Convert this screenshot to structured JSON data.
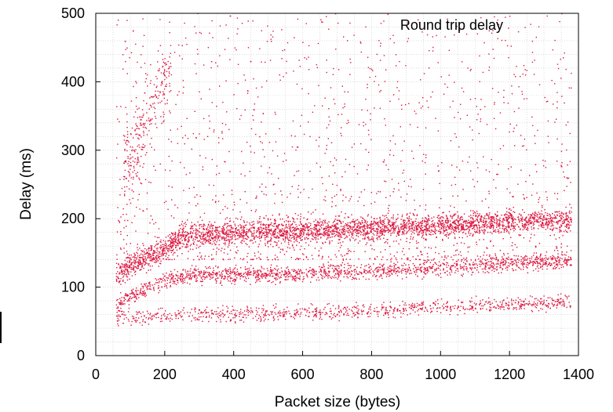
{
  "chart_data": {
    "type": "scatter",
    "title": "",
    "xlabel": "Packet size (bytes)",
    "ylabel": "Delay (ms)",
    "xlim": [
      0,
      1400
    ],
    "ylim": [
      0,
      500
    ],
    "xticks": [
      0,
      200,
      400,
      600,
      800,
      1000,
      1200,
      1400
    ],
    "xtick_labels": [
      "0",
      "200",
      "400",
      "600",
      "800",
      "1000",
      "1200",
      "1400"
    ],
    "yticks": [
      0,
      100,
      200,
      300,
      400,
      500
    ],
    "ytick_labels": [
      "0",
      "100",
      "200",
      "300",
      "400",
      "500"
    ],
    "grid": true,
    "legend_position": "top-right",
    "series": [
      {
        "name": "Round trip delay",
        "color": "#dc143c",
        "x_range": [
          60,
          1380
        ],
        "bands": [
          {
            "label_position": "lowest",
            "points": [
              [
                60,
                55
              ],
              [
                200,
                58
              ],
              [
                400,
                60
              ],
              [
                600,
                62
              ],
              [
                800,
                65
              ],
              [
                1000,
                72
              ],
              [
                1200,
                76
              ],
              [
                1380,
                78
              ]
            ],
            "spread": 9
          },
          {
            "label_position": "middle",
            "points": [
              [
                60,
                75
              ],
              [
                120,
                90
              ],
              [
                200,
                110
              ],
              [
                300,
                118
              ],
              [
                600,
                120
              ],
              [
                800,
                124
              ],
              [
                1000,
                128
              ],
              [
                1200,
                135
              ],
              [
                1380,
                138
              ]
            ],
            "spread": 10
          },
          {
            "label_position": "upper",
            "points": [
              [
                60,
                120
              ],
              [
                120,
                135
              ],
              [
                200,
                155
              ],
              [
                260,
                175
              ],
              [
                400,
                180
              ],
              [
                600,
                183
              ],
              [
                800,
                186
              ],
              [
                1000,
                190
              ],
              [
                1200,
                195
              ],
              [
                1380,
                198
              ]
            ],
            "spread": 14
          }
        ],
        "scatter_above_bands": {
          "y_range": [
            140,
            500
          ]
        },
        "early_cluster": {
          "x_range": [
            80,
            220
          ],
          "y_range": [
            260,
            500
          ]
        }
      }
    ]
  }
}
